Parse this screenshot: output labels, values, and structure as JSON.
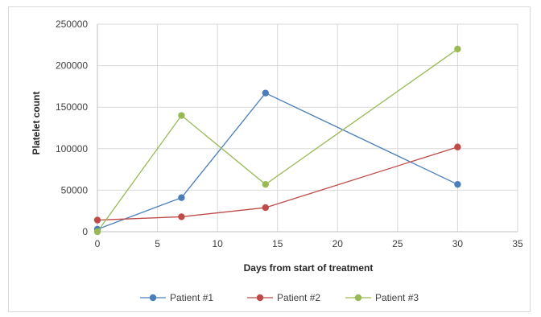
{
  "chart_data": {
    "type": "line",
    "title": "",
    "xlabel": "Days from start of treatment",
    "ylabel": "Platelet count",
    "xlim": [
      0,
      35
    ],
    "ylim": [
      0,
      250000
    ],
    "xticks": [
      0,
      5,
      10,
      15,
      20,
      25,
      30,
      35
    ],
    "yticks": [
      0,
      50000,
      100000,
      150000,
      200000,
      250000
    ],
    "xtick_labels": [
      "0",
      "5",
      "10",
      "15",
      "20",
      "25",
      "30",
      "35"
    ],
    "ytick_labels": [
      "0",
      "50000",
      "100000",
      "150000",
      "200000",
      "250000"
    ],
    "grid": true,
    "legend_position": "bottom",
    "series": [
      {
        "name": "Patient #1",
        "color": "#4a7ebb",
        "x": [
          0,
          7,
          14,
          30
        ],
        "y": [
          3000,
          41000,
          167000,
          57000
        ]
      },
      {
        "name": "Patient #2",
        "color": "#be4b48",
        "x": [
          0,
          7,
          14,
          30
        ],
        "y": [
          14000,
          18000,
          29000,
          102000
        ]
      },
      {
        "name": "Patient #3",
        "color": "#98b954",
        "x": [
          0,
          7,
          14,
          30
        ],
        "y": [
          0,
          140000,
          57000,
          220000
        ]
      }
    ]
  }
}
